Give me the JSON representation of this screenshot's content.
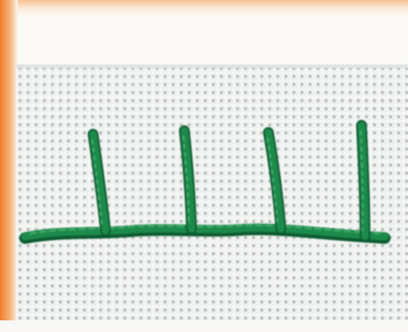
{
  "photo": {
    "subject": "blanket-stitch-embroidery",
    "colors": {
      "thread": "#1f8a4c",
      "thread_highlight": "#4fb877",
      "thread_shadow": "#0f5c30",
      "fabric": "#ecefec",
      "fabric_hole": "#9ea6a4",
      "backdrop": "#fbfaf7",
      "orange_accent": "#f29a4e"
    },
    "stitch_count": 4
  }
}
